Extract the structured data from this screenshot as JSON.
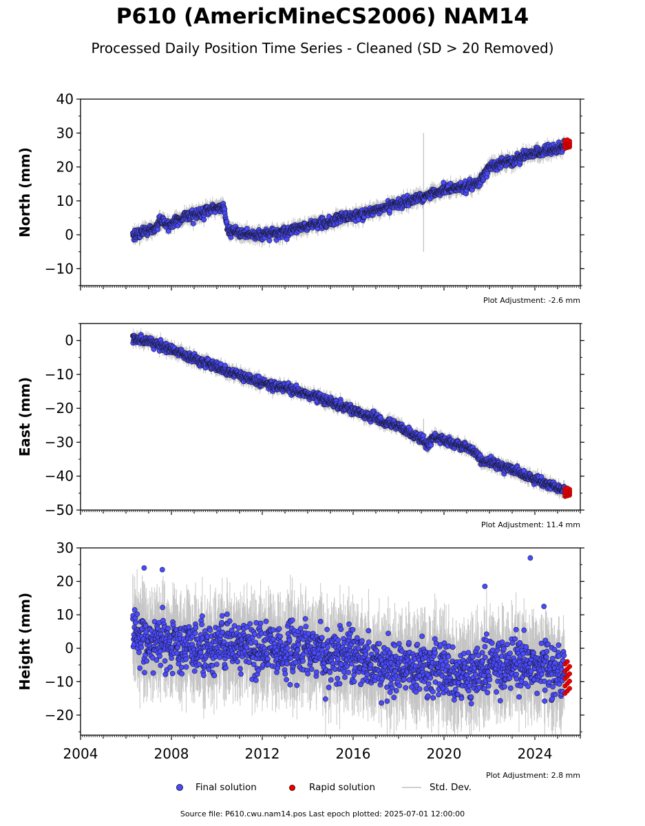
{
  "title": "P610 (AmericMineCS2006) NAM14",
  "subtitle": "Processed Daily Position Time Series - Cleaned (SD > 20 Removed)",
  "footer": "Source file: P610.cwu.nam14.pos  Last epoch plotted: 2025-07-01 12:00:00",
  "legend": {
    "final": "Final solution",
    "rapid": "Rapid solution",
    "sd": "Std. Dev."
  },
  "colors": {
    "final": "#4a4aff",
    "rapid": "#ee0000",
    "sd": "#a0a0a0",
    "edge": "#1a1a33"
  },
  "chart_data": [
    {
      "type": "scatter",
      "ylabel": "North (mm)",
      "adjustment": "Plot Adjustment: -2.6 mm",
      "xlim": [
        2004,
        2026
      ],
      "ylim": [
        -15,
        40
      ],
      "yticks": [
        -10,
        0,
        10,
        20,
        30,
        40
      ],
      "ytick_labels": [
        "−10",
        "0",
        "10",
        "20",
        "30",
        "40"
      ],
      "trend": [
        [
          2006.3,
          0
        ],
        [
          2007.2,
          1.5
        ],
        [
          2007.5,
          4
        ],
        [
          2008.0,
          3
        ],
        [
          2008.5,
          5
        ],
        [
          2009.0,
          6
        ],
        [
          2009.5,
          7
        ],
        [
          2010.3,
          8.5
        ],
        [
          2010.45,
          2
        ],
        [
          2011.0,
          0
        ],
        [
          2012.0,
          0
        ],
        [
          2013.0,
          1
        ],
        [
          2014.0,
          2.5
        ],
        [
          2015.0,
          4
        ],
        [
          2016.0,
          5.5
        ],
        [
          2017.0,
          7.5
        ],
        [
          2018.0,
          9
        ],
        [
          2019.0,
          11
        ],
        [
          2020.0,
          13
        ],
        [
          2021.0,
          14.5
        ],
        [
          2021.6,
          15.5
        ],
        [
          2022.0,
          20
        ],
        [
          2023.0,
          22
        ],
        [
          2024.0,
          24
        ],
        [
          2025.0,
          25.5
        ],
        [
          2025.3,
          26
        ]
      ],
      "noise": 1.1,
      "rapid": {
        "x": [
          2025.3,
          2025.5
        ],
        "y": [
          25.5,
          28
        ]
      },
      "spike": {
        "x": 2019.1,
        "y1": -5,
        "y2": 30
      }
    },
    {
      "type": "scatter",
      "ylabel": "East (mm)",
      "adjustment": "Plot Adjustment: 11.4 mm",
      "xlim": [
        2004,
        2026
      ],
      "ylim": [
        -50,
        5
      ],
      "yticks": [
        -50,
        -40,
        -30,
        -20,
        -10,
        0
      ],
      "ytick_labels": [
        "−50",
        "−40",
        "−30",
        "−20",
        "−10",
        "0"
      ],
      "trend": [
        [
          2006.3,
          0.5
        ],
        [
          2007.0,
          0
        ],
        [
          2008.0,
          -2.5
        ],
        [
          2009.0,
          -5.5
        ],
        [
          2010.0,
          -8
        ],
        [
          2011.0,
          -10
        ],
        [
          2012.0,
          -12.5
        ],
        [
          2013.0,
          -14
        ],
        [
          2014.0,
          -16
        ],
        [
          2015.0,
          -18
        ],
        [
          2016.0,
          -20.5
        ],
        [
          2017.0,
          -23
        ],
        [
          2018.0,
          -25.5
        ],
        [
          2019.0,
          -29
        ],
        [
          2019.3,
          -31
        ],
        [
          2019.5,
          -28.5
        ],
        [
          2020.0,
          -29.5
        ],
        [
          2021.0,
          -31.5
        ],
        [
          2021.3,
          -32.5
        ],
        [
          2021.6,
          -35.5
        ],
        [
          2022.0,
          -36
        ],
        [
          2023.0,
          -38
        ],
        [
          2024.0,
          -41
        ],
        [
          2025.0,
          -43.5
        ],
        [
          2025.3,
          -44.5
        ]
      ],
      "noise": 1.0,
      "rapid": {
        "x": [
          2025.3,
          2025.5
        ],
        "y": [
          -46,
          -43.5
        ]
      },
      "spike": {
        "x": 2019.1,
        "y1": -31,
        "y2": -23
      }
    },
    {
      "type": "scatter",
      "ylabel": "Height (mm)",
      "adjustment": "Plot Adjustment: 2.8 mm",
      "xlim": [
        2004,
        2026
      ],
      "ylim": [
        -26,
        30
      ],
      "yticks": [
        -20,
        -10,
        0,
        10,
        20,
        30
      ],
      "ytick_labels": [
        "−20",
        "−10",
        "0",
        "10",
        "20",
        "30"
      ],
      "xticks": [
        2004,
        2008,
        2012,
        2016,
        2020,
        2024
      ],
      "xtick_labels": [
        "2004",
        "2008",
        "2012",
        "2016",
        "2020",
        "2024"
      ],
      "trend": [
        [
          2006.3,
          5
        ],
        [
          2007.0,
          2
        ],
        [
          2008.0,
          0
        ],
        [
          2009.0,
          0
        ],
        [
          2010.0,
          1
        ],
        [
          2011.0,
          1
        ],
        [
          2012.0,
          0
        ],
        [
          2013.0,
          -1
        ],
        [
          2014.0,
          -1
        ],
        [
          2015.0,
          -2
        ],
        [
          2016.0,
          -3
        ],
        [
          2017.0,
          -4
        ],
        [
          2018.0,
          -5
        ],
        [
          2019.0,
          -6
        ],
        [
          2020.0,
          -8
        ],
        [
          2021.0,
          -7
        ],
        [
          2022.0,
          -5
        ],
        [
          2023.0,
          -5
        ],
        [
          2024.0,
          -6
        ],
        [
          2025.0,
          -7
        ],
        [
          2025.3,
          -7
        ]
      ],
      "noise": 6.0,
      "rapid": {
        "x": [
          2025.3,
          2025.5
        ],
        "y": [
          -13.5,
          -4
        ]
      },
      "outliers": [
        [
          2006.8,
          24
        ],
        [
          2007.6,
          23.5
        ],
        [
          2023.8,
          27
        ],
        [
          2021.8,
          18.5
        ],
        [
          2024.4,
          12.5
        ]
      ]
    }
  ]
}
